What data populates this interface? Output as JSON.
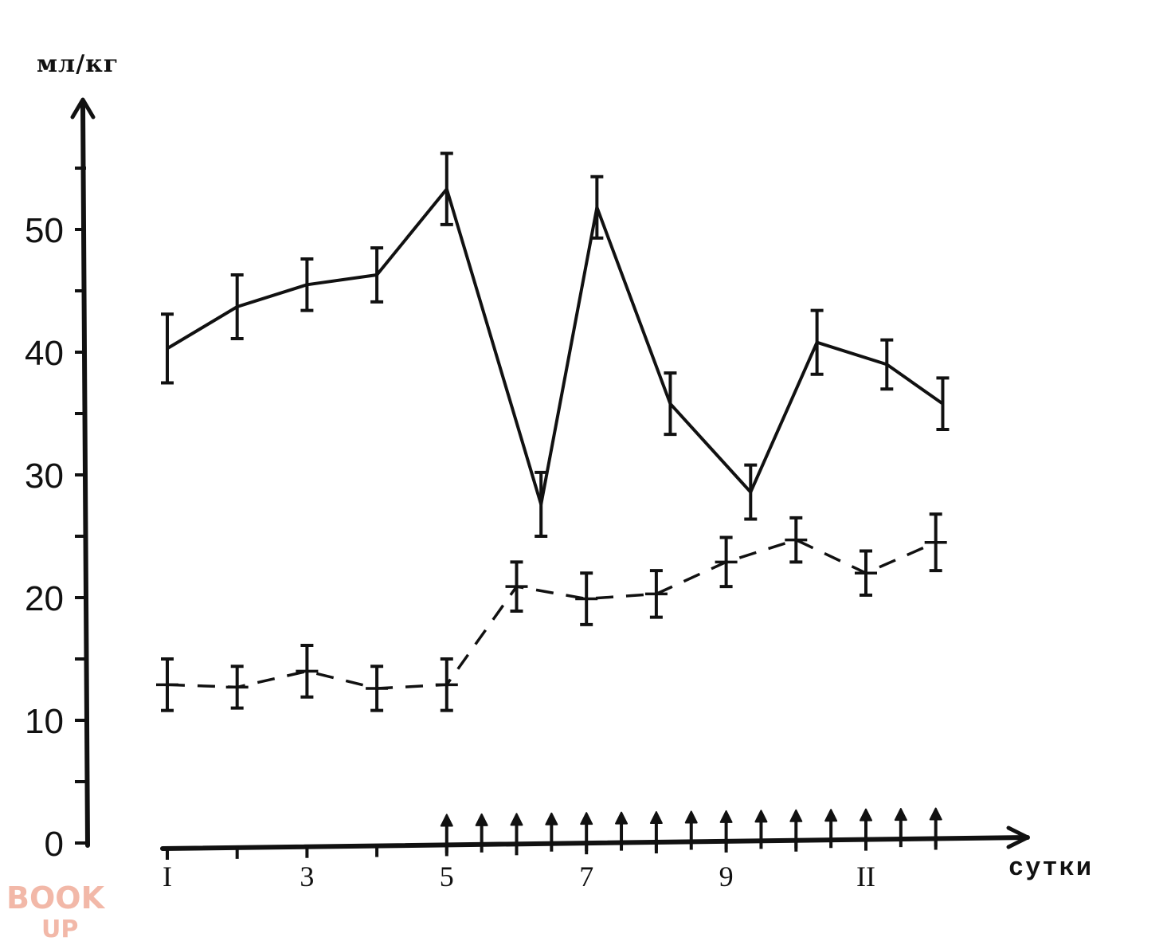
{
  "chart_data": {
    "type": "line",
    "y_unit_label": "мл/кг",
    "x_unit_label": "сутки",
    "y_ticks": [
      0,
      10,
      20,
      30,
      40,
      50
    ],
    "y_tick_labels": [
      "0",
      "10",
      "20",
      "30",
      "40",
      "50"
    ],
    "x_ticks": [
      1,
      2,
      3,
      4,
      5,
      6,
      7,
      8,
      9,
      10,
      11,
      12
    ],
    "x_tick_labels": [
      {
        "x": 1,
        "label": "I"
      },
      {
        "x": 3,
        "label": "3"
      },
      {
        "x": 5,
        "label": "5"
      },
      {
        "x": 7,
        "label": "7"
      },
      {
        "x": 9,
        "label": "9"
      },
      {
        "x": 11,
        "label": "II"
      }
    ],
    "ylim": [
      0,
      58
    ],
    "xlim": [
      0.8,
      13.2
    ],
    "series": [
      {
        "style": "solid",
        "points": [
          {
            "x": 1.0,
            "y": 40.3,
            "err": 2.8
          },
          {
            "x": 2.0,
            "y": 43.7,
            "err": 2.6
          },
          {
            "x": 3.0,
            "y": 45.5,
            "err": 2.1
          },
          {
            "x": 4.0,
            "y": 46.3,
            "err": 2.2
          },
          {
            "x": 5.0,
            "y": 53.3,
            "err": 2.9
          },
          {
            "x": 6.35,
            "y": 27.6,
            "err": 2.6
          },
          {
            "x": 7.15,
            "y": 51.8,
            "err": 2.5
          },
          {
            "x": 8.2,
            "y": 35.8,
            "err": 2.5
          },
          {
            "x": 9.35,
            "y": 28.6,
            "err": 2.2
          },
          {
            "x": 10.3,
            "y": 40.8,
            "err": 2.6
          },
          {
            "x": 11.3,
            "y": 39.0,
            "err": 2.0
          },
          {
            "x": 12.1,
            "y": 35.8,
            "err": 2.1
          }
        ]
      },
      {
        "style": "dashed",
        "points": [
          {
            "x": 1.0,
            "y": 12.9,
            "err": 2.1
          },
          {
            "x": 2.0,
            "y": 12.7,
            "err": 1.7
          },
          {
            "x": 3.0,
            "y": 14.0,
            "err": 2.1
          },
          {
            "x": 4.0,
            "y": 12.6,
            "err": 1.8
          },
          {
            "x": 5.0,
            "y": 12.9,
            "err": 2.1
          },
          {
            "x": 6.0,
            "y": 20.9,
            "err": 2.0
          },
          {
            "x": 7.0,
            "y": 19.9,
            "err": 2.1
          },
          {
            "x": 8.0,
            "y": 20.3,
            "err": 1.9
          },
          {
            "x": 9.0,
            "y": 22.9,
            "err": 2.0
          },
          {
            "x": 10.0,
            "y": 24.7,
            "err": 1.8
          },
          {
            "x": 11.0,
            "y": 22.0,
            "err": 1.8
          },
          {
            "x": 12.0,
            "y": 24.5,
            "err": 2.3
          }
        ]
      }
    ],
    "markers": {
      "symbol": "arrow-up",
      "x_positions": [
        5.0,
        5.5,
        6.0,
        6.5,
        7.0,
        7.5,
        8.0,
        8.5,
        9.0,
        9.5,
        10.0,
        10.5,
        11.0,
        11.5,
        12.0
      ]
    },
    "grid": false,
    "legend": "none"
  },
  "watermark": {
    "line1": "BOOK",
    "line2": "UP",
    "color": "#f2b8a8"
  }
}
